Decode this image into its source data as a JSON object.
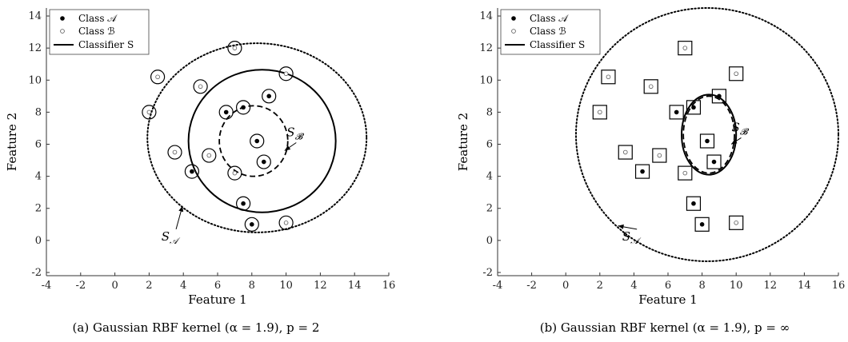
{
  "chart_data": [
    {
      "type": "scatter",
      "caption": "(a) Gaussian RBF kernel (α = 1.9), p = 2",
      "xlabel": "Feature 1",
      "ylabel": "Feature 2",
      "xlim": [
        -4,
        16
      ],
      "ylim": [
        -2.2,
        14.5
      ],
      "xticks": [
        "-4",
        "-2",
        "0",
        "2",
        "4",
        "6",
        "8",
        "10",
        "12",
        "14",
        "16"
      ],
      "yticks": [
        "-2",
        "0",
        "2",
        "4",
        "6",
        "8",
        "10",
        "12",
        "14"
      ],
      "grid": false,
      "legend_position": "top-left",
      "legend": [
        "Class 𝒜",
        "Class ℬ",
        "Classifier S"
      ],
      "marker_shape": "circle",
      "series": [
        {
          "name": "Class 𝒜",
          "marker": "filled-dot",
          "points": [
            [
              4.5,
              4.3
            ],
            [
              6.5,
              8.0
            ],
            [
              7.5,
              8.3
            ],
            [
              9.0,
              9.0
            ],
            [
              8.3,
              6.2
            ],
            [
              8.7,
              4.9
            ],
            [
              7.5,
              2.3
            ],
            [
              8.0,
              1.0
            ]
          ]
        },
        {
          "name": "Class ℬ",
          "marker": "open-dot",
          "points": [
            [
              2.0,
              8.0
            ],
            [
              2.5,
              10.2
            ],
            [
              5.0,
              9.6
            ],
            [
              3.5,
              5.5
            ],
            [
              5.5,
              5.3
            ],
            [
              7.0,
              4.2
            ],
            [
              7.0,
              12.0
            ],
            [
              10.0,
              10.4
            ],
            [
              10.0,
              1.1
            ]
          ]
        }
      ],
      "regions": {
        "classifier_S": {
          "style": "solid",
          "center": [
            8.6,
            6.2
          ],
          "radius": [
            4.3,
            4.45
          ]
        },
        "S_B": {
          "style": "dashed",
          "center": [
            8.1,
            6.2
          ],
          "radius": [
            2.0,
            2.2
          ]
        },
        "S_A": {
          "style": "dotted",
          "center": [
            8.3,
            6.4
          ],
          "radius": [
            6.4,
            5.9
          ]
        }
      },
      "annotations": [
        {
          "text": "S",
          "sub": "𝓑",
          "at": [
            10.5,
            6.5
          ]
        },
        {
          "text": "S",
          "sub": "𝒜",
          "at": [
            3.2,
            0.0
          ]
        }
      ]
    },
    {
      "type": "scatter",
      "caption": "(b) Gaussian RBF kernel (α = 1.9), p = ∞",
      "xlabel": "Feature 1",
      "ylabel": "Feature 2",
      "xlim": [
        -4,
        16
      ],
      "ylim": [
        -2.2,
        14.5
      ],
      "xticks": [
        "-4",
        "-2",
        "0",
        "2",
        "4",
        "6",
        "8",
        "10",
        "12",
        "14",
        "16"
      ],
      "yticks": [
        "-2",
        "0",
        "2",
        "4",
        "6",
        "8",
        "10",
        "12",
        "14"
      ],
      "grid": false,
      "legend_position": "top-left",
      "legend": [
        "Class 𝒜",
        "Class ℬ",
        "Classifier S"
      ],
      "marker_shape": "square",
      "series": [
        {
          "name": "Class 𝒜",
          "marker": "filled-dot",
          "points": [
            [
              4.5,
              4.3
            ],
            [
              6.5,
              8.0
            ],
            [
              7.5,
              8.3
            ],
            [
              9.0,
              9.0
            ],
            [
              8.3,
              6.2
            ],
            [
              8.7,
              4.9
            ],
            [
              7.5,
              2.3
            ],
            [
              8.0,
              1.0
            ]
          ]
        },
        {
          "name": "Class ℬ",
          "marker": "open-dot",
          "points": [
            [
              2.0,
              8.0
            ],
            [
              2.5,
              10.2
            ],
            [
              5.0,
              9.6
            ],
            [
              3.5,
              5.5
            ],
            [
              5.5,
              5.3
            ],
            [
              7.0,
              4.2
            ],
            [
              7.0,
              12.0
            ],
            [
              10.0,
              10.4
            ],
            [
              10.0,
              1.1
            ]
          ]
        }
      ],
      "regions": {
        "classifier_S": {
          "style": "solid",
          "center": [
            8.4,
            6.6
          ],
          "radius": [
            1.6,
            2.5
          ]
        },
        "S_B": {
          "style": "dashed",
          "center": [
            8.4,
            6.6
          ],
          "radius": [
            1.5,
            2.4
          ]
        },
        "S_A": {
          "style": "dotted",
          "center": [
            8.3,
            6.6
          ],
          "radius": [
            7.7,
            7.9
          ]
        }
      },
      "annotations": [
        {
          "text": "S",
          "sub": "𝓑",
          "at": [
            10.2,
            6.8
          ]
        },
        {
          "text": "S",
          "sub": "𝒜",
          "at": [
            3.8,
            0.0
          ]
        }
      ]
    }
  ]
}
